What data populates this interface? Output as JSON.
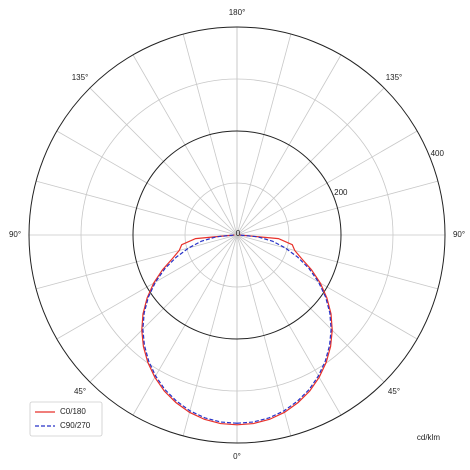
{
  "chart_data": {
    "type": "polar",
    "x": [
      0,
      5,
      10,
      15,
      20,
      25,
      30,
      35,
      40,
      45,
      50,
      55,
      60,
      65,
      70,
      75,
      80,
      85,
      90
    ],
    "series": [
      {
        "name": "C0/180",
        "color": "#e8312a",
        "dash": false,
        "values": [
          365,
          364,
          360,
          353,
          343,
          331,
          316,
          299,
          280,
          259,
          236,
          211,
          185,
          158,
          132,
          115,
          108,
          80,
          5
        ]
      },
      {
        "name": "C90/270",
        "color": "#2632c8",
        "dash": true,
        "values": [
          362,
          361,
          357,
          350,
          340,
          328,
          313,
          296,
          277,
          256,
          233,
          208,
          181,
          153,
          124,
          96,
          70,
          40,
          5
        ]
      }
    ],
    "rlim": [
      0,
      400
    ],
    "rticks": [
      0,
      200,
      400
    ],
    "rgrid_minor": [
      100,
      300
    ],
    "theta_ticks": [
      {
        "value": 0,
        "label": "0°"
      },
      {
        "value": 45,
        "label": "45°"
      },
      {
        "value": 90,
        "label": "90°"
      },
      {
        "value": 135,
        "label": "135°"
      },
      {
        "value": 180,
        "label": "180°"
      }
    ],
    "theta_grid": [
      0,
      15,
      30,
      45,
      60,
      75,
      90,
      105,
      120,
      135,
      150,
      165,
      180
    ],
    "unit": "cd/klm",
    "legend": "lower left"
  }
}
